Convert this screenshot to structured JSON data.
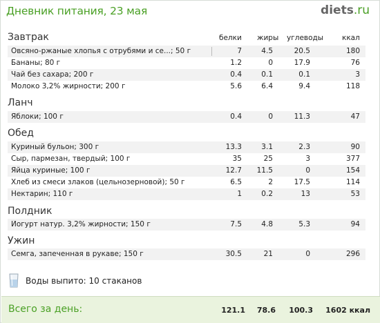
{
  "header": {
    "title": "Дневник питания, 23 мая",
    "brand_main": "diets",
    "brand_suffix": ".ru"
  },
  "columns": {
    "protein": "белки",
    "fat": "жиры",
    "carbs": "углеводы",
    "kcal": "ккал"
  },
  "meals": [
    {
      "title": "Завтрак",
      "items": [
        {
          "name": "Овсяно-ржаные хлопья с отрубями и се...; 50 г",
          "p": "7",
          "f": "4.5",
          "c": "20.5",
          "k": "180"
        },
        {
          "name": "Бананы; 80 г",
          "p": "1.2",
          "f": "0",
          "c": "17.9",
          "k": "76"
        },
        {
          "name": "Чай без сахара; 200 г",
          "p": "0.4",
          "f": "0.1",
          "c": "0.1",
          "k": "3"
        },
        {
          "name": "Молоко 3,2% жирности; 200 г",
          "p": "5.6",
          "f": "6.4",
          "c": "9.4",
          "k": "118"
        }
      ]
    },
    {
      "title": "Ланч",
      "items": [
        {
          "name": "Яблоки; 100 г",
          "p": "0.4",
          "f": "0",
          "c": "11.3",
          "k": "47"
        }
      ]
    },
    {
      "title": "Обед",
      "items": [
        {
          "name": "Куриный бульон; 300 г",
          "p": "13.3",
          "f": "3.1",
          "c": "2.3",
          "k": "90"
        },
        {
          "name": "Сыр, пармезан, твердый; 100 г",
          "p": "35",
          "f": "25",
          "c": "3",
          "k": "377"
        },
        {
          "name": "Яйца куриные; 100 г",
          "p": "12.7",
          "f": "11.5",
          "c": "0",
          "k": "154"
        },
        {
          "name": "Хлеб из смеси злаков (цельнозерновой); 50 г",
          "p": "6.5",
          "f": "2",
          "c": "17.5",
          "k": "114"
        },
        {
          "name": "Нектарин; 110 г",
          "p": "1",
          "f": "0.2",
          "c": "13",
          "k": "53"
        }
      ]
    },
    {
      "title": "Полдник",
      "items": [
        {
          "name": "Йогурт натур. 3,2% жирности; 150 г",
          "p": "7.5",
          "f": "4.8",
          "c": "5.3",
          "k": "94"
        }
      ]
    },
    {
      "title": "Ужин",
      "items": [
        {
          "name": "Семга, запеченная в рукаве; 150 г",
          "p": "30.5",
          "f": "21",
          "c": "0",
          "k": "296"
        }
      ]
    }
  ],
  "water": {
    "text": "Воды выпито: 10 стаканов",
    "icon": "glass-icon"
  },
  "totals": {
    "label": "Всего за день:",
    "p": "121.1",
    "f": "78.6",
    "c": "100.3",
    "k": "1602 ккал"
  },
  "colors": {
    "accent": "#4aa025",
    "row_alt": "#f2f2f2",
    "footer_bg": "#eaf3de"
  }
}
